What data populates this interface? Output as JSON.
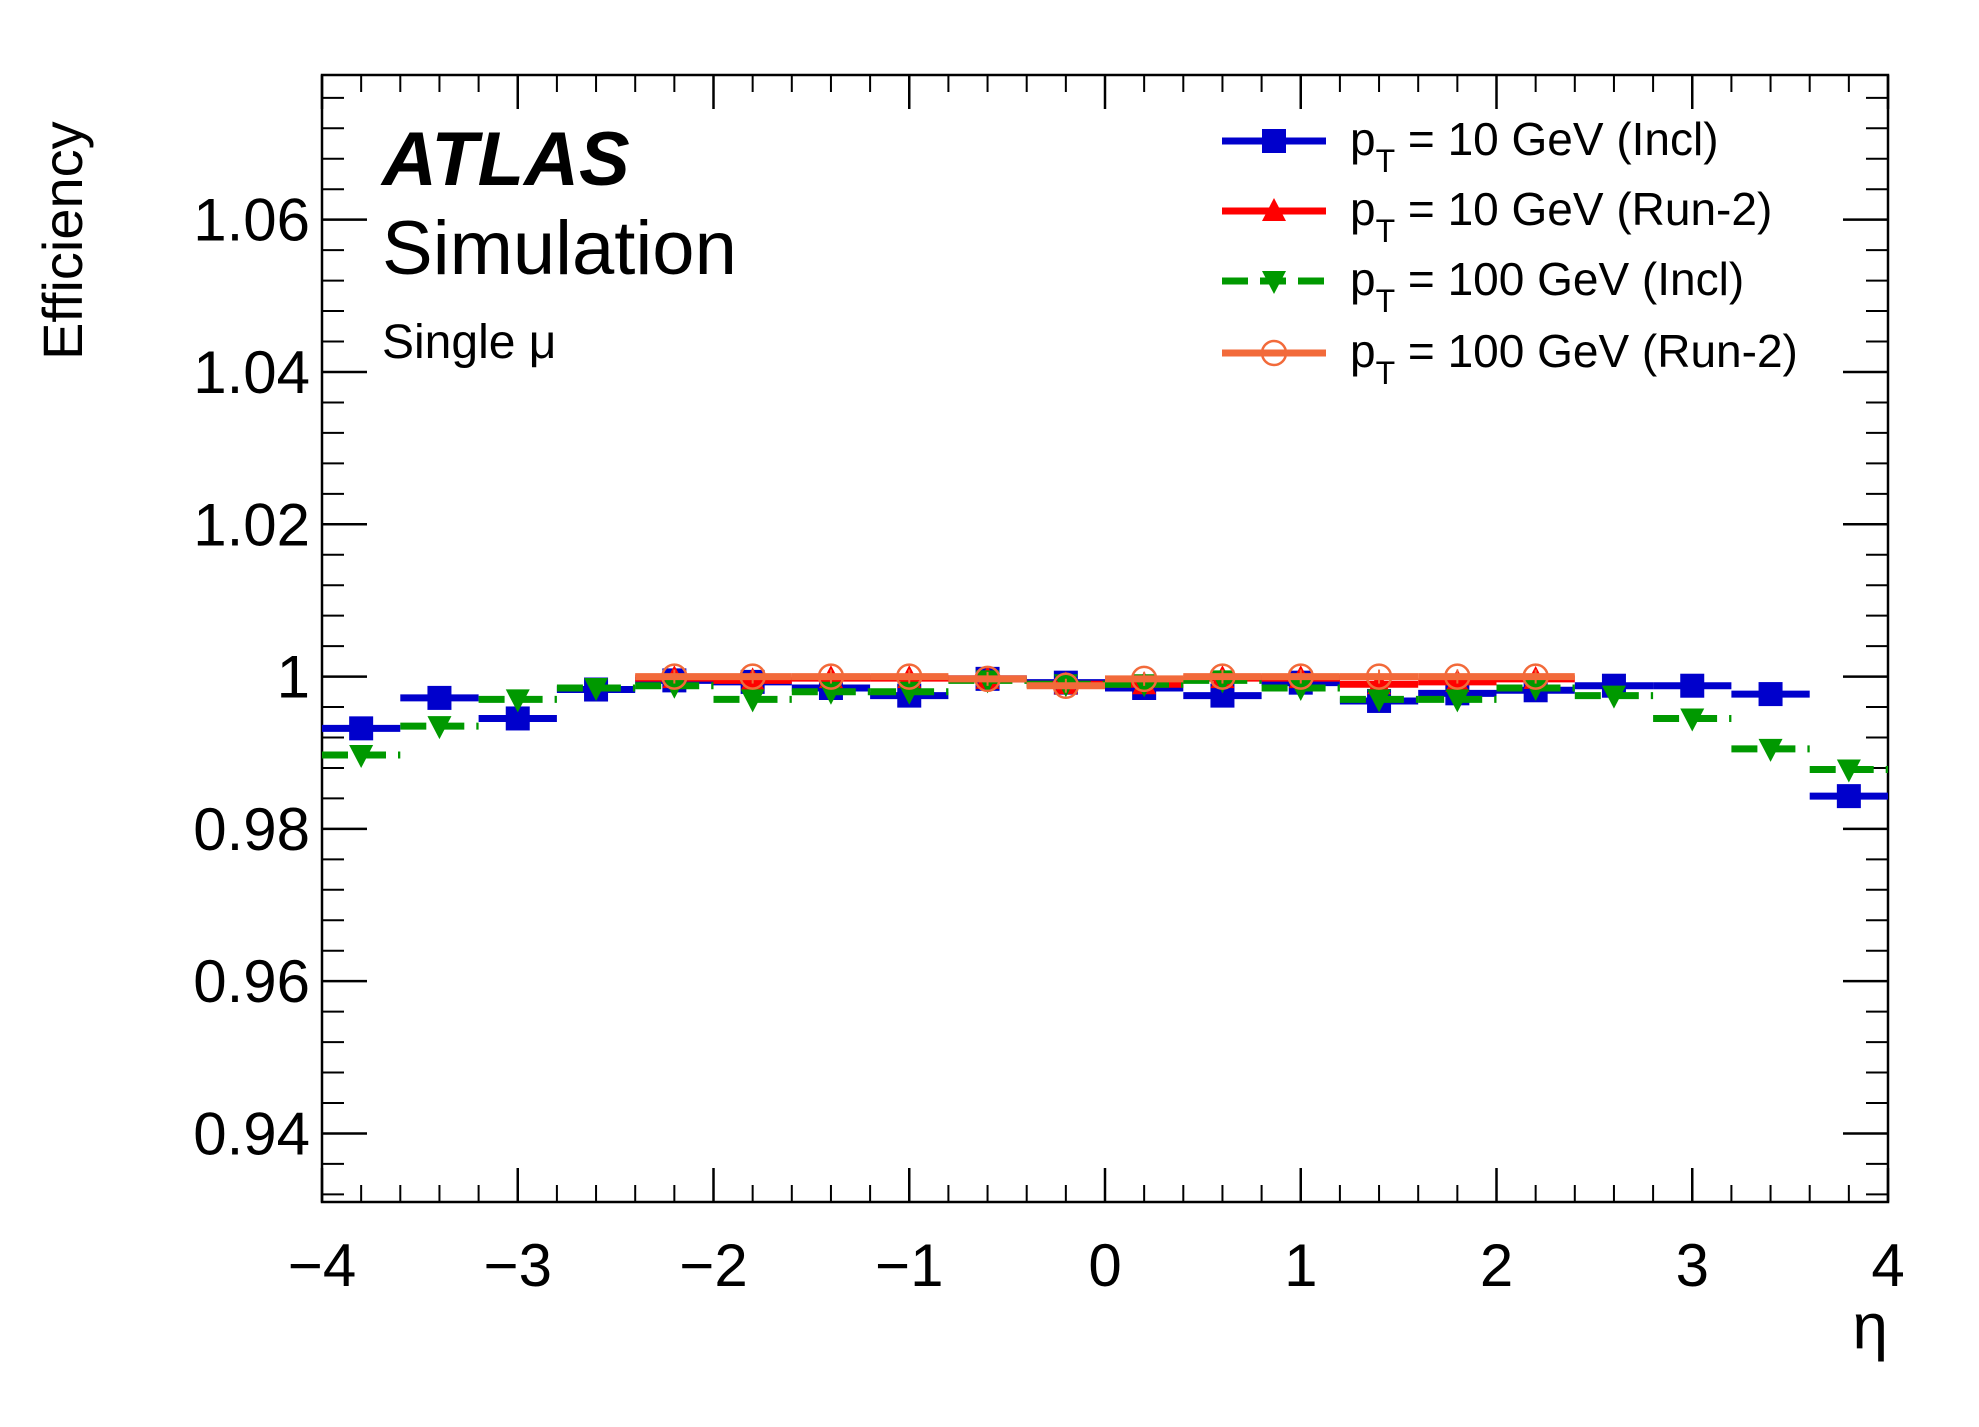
{
  "chart_data": {
    "type": "line",
    "title": "",
    "xlabel": "η",
    "ylabel": "Efficiency",
    "xlim": [
      -4,
      4
    ],
    "ylim": [
      0.931,
      1.079
    ],
    "x_ticks": [
      "−4",
      "−3",
      "−2",
      "−1",
      "0",
      "1",
      "2",
      "3",
      "4"
    ],
    "y_ticks": [
      "0.94",
      "0.96",
      "0.98",
      "1",
      "1.02",
      "1.04",
      "1.06"
    ],
    "annotations": {
      "experiment": "ATLAS",
      "subtitle": "Simulation",
      "selection": "Single μ"
    },
    "legend_position": "top-right",
    "series": [
      {
        "name": "pT = 10 GeV (Incl)",
        "legend_main": "p",
        "legend_sub": "T",
        "legend_rest": " = 10 GeV (Incl)",
        "color": "#0000cc",
        "marker": "square",
        "line": "solid",
        "bins": [
          [
            -4.0,
            -3.6
          ],
          [
            -3.6,
            -3.2
          ],
          [
            -3.2,
            -2.8
          ],
          [
            -2.8,
            -2.4
          ],
          [
            -2.4,
            -2.0
          ],
          [
            -2.0,
            -1.6
          ],
          [
            -1.6,
            -1.2
          ],
          [
            -1.2,
            -0.8
          ],
          [
            -0.8,
            -0.4
          ],
          [
            -0.4,
            0.0
          ],
          [
            0.0,
            0.4
          ],
          [
            0.4,
            0.8
          ],
          [
            0.8,
            1.2
          ],
          [
            1.2,
            1.6
          ],
          [
            1.6,
            2.0
          ],
          [
            2.0,
            2.4
          ],
          [
            2.4,
            2.8
          ],
          [
            2.8,
            3.2
          ],
          [
            3.2,
            3.6
          ],
          [
            3.6,
            4.0
          ]
        ],
        "values": [
          0.9932,
          0.9972,
          0.9945,
          0.9983,
          0.9995,
          0.9993,
          0.9985,
          0.9975,
          0.9997,
          0.9992,
          0.9985,
          0.9975,
          0.9992,
          0.9968,
          0.9978,
          0.9982,
          0.9988,
          0.9988,
          0.9977,
          0.9843
        ]
      },
      {
        "name": "pT = 10 GeV (Run-2)",
        "legend_main": "p",
        "legend_sub": "T",
        "legend_rest": " = 10 GeV (Run-2)",
        "color": "#ff0000",
        "marker": "triangle-up",
        "line": "solid",
        "bins": [
          [
            -2.4,
            -2.0
          ],
          [
            -2.0,
            -1.6
          ],
          [
            -1.6,
            -1.2
          ],
          [
            -1.2,
            -0.8
          ],
          [
            -0.8,
            -0.4
          ],
          [
            -0.4,
            0.0
          ],
          [
            0.0,
            0.4
          ],
          [
            0.4,
            0.8
          ],
          [
            0.8,
            1.2
          ],
          [
            1.2,
            1.6
          ],
          [
            1.6,
            2.0
          ],
          [
            2.0,
            2.4
          ]
        ],
        "values": [
          0.9998,
          0.9995,
          0.9998,
          0.9998,
          0.9997,
          0.999,
          0.999,
          0.9998,
          0.9998,
          0.999,
          0.9993,
          0.9997
        ]
      },
      {
        "name": "pT = 100 GeV (Incl)",
        "legend_main": "p",
        "legend_sub": "T",
        "legend_rest": " = 100 GeV (Incl)",
        "color": "#009900",
        "marker": "triangle-down",
        "line": "dashed",
        "bins": [
          [
            -4.0,
            -3.6
          ],
          [
            -3.6,
            -3.2
          ],
          [
            -3.2,
            -2.8
          ],
          [
            -2.8,
            -2.4
          ],
          [
            -2.4,
            -2.0
          ],
          [
            -2.0,
            -1.6
          ],
          [
            -1.6,
            -1.2
          ],
          [
            -1.2,
            -0.8
          ],
          [
            -0.8,
            -0.4
          ],
          [
            -0.4,
            0.0
          ],
          [
            0.0,
            0.4
          ],
          [
            0.4,
            0.8
          ],
          [
            0.8,
            1.2
          ],
          [
            1.2,
            1.6
          ],
          [
            1.6,
            2.0
          ],
          [
            2.0,
            2.4
          ],
          [
            2.4,
            2.8
          ],
          [
            2.8,
            3.2
          ],
          [
            3.2,
            3.6
          ],
          [
            3.6,
            4.0
          ]
        ],
        "values": [
          0.9897,
          0.9935,
          0.997,
          0.9985,
          0.9988,
          0.997,
          0.998,
          0.998,
          0.9995,
          0.999,
          0.999,
          0.9995,
          0.9985,
          0.997,
          0.997,
          0.9985,
          0.9975,
          0.9945,
          0.9905,
          0.9878
        ]
      },
      {
        "name": "pT = 100 GeV (Run-2)",
        "legend_main": "p",
        "legend_sub": "T",
        "legend_rest": " = 100 GeV (Run-2)",
        "color": "#f26a3a",
        "marker": "circle-open",
        "line": "solid",
        "bins": [
          [
            -2.4,
            -2.0
          ],
          [
            -2.0,
            -1.6
          ],
          [
            -1.6,
            -1.2
          ],
          [
            -1.2,
            -0.8
          ],
          [
            -0.8,
            -0.4
          ],
          [
            -0.4,
            0.0
          ],
          [
            0.0,
            0.4
          ],
          [
            0.4,
            0.8
          ],
          [
            0.8,
            1.2
          ],
          [
            1.2,
            1.6
          ],
          [
            1.6,
            2.0
          ],
          [
            2.0,
            2.4
          ]
        ],
        "values": [
          1.0,
          1.0,
          1.0,
          1.0,
          0.9997,
          0.9988,
          0.9997,
          1.0,
          1.0,
          1.0,
          1.0,
          1.0
        ]
      }
    ]
  }
}
